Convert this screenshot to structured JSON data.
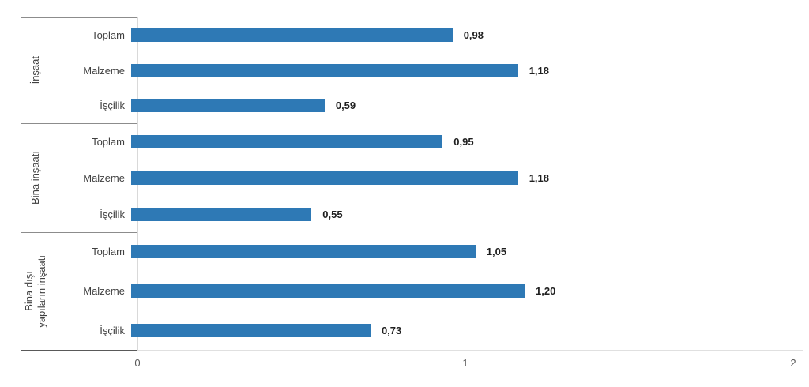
{
  "chart_data": {
    "type": "bar",
    "orientation": "horizontal",
    "bar_color": "#2E79B5",
    "x_axis": {
      "min": 0,
      "max": 2,
      "ticks": [
        "0",
        "1",
        "2"
      ],
      "gridlines": false
    },
    "legend": "none",
    "decimal_separator": ",",
    "groups": [
      {
        "label": "İnşaat",
        "items": [
          {
            "label": "Toplam",
            "value": 0.98,
            "value_label": "0,98"
          },
          {
            "label": "Malzeme",
            "value": 1.18,
            "value_label": "1,18"
          },
          {
            "label": "İşçilik",
            "value": 0.59,
            "value_label": "0,59"
          }
        ]
      },
      {
        "label": "Bina inşaatı",
        "items": [
          {
            "label": "Toplam",
            "value": 0.95,
            "value_label": "0,95"
          },
          {
            "label": "Malzeme",
            "value": 1.18,
            "value_label": "1,18"
          },
          {
            "label": "İşçilik",
            "value": 0.55,
            "value_label": "0,55"
          }
        ]
      },
      {
        "label": "Bina dışı yapıların inşaatı",
        "label_lines": [
          "Bina dışı",
          "yapıların inşaatı"
        ],
        "items": [
          {
            "label": "Toplam",
            "value": 1.05,
            "value_label": "1,05"
          },
          {
            "label": "Malzeme",
            "value": 1.2,
            "value_label": "1,20"
          },
          {
            "label": "İşçilik",
            "value": 0.73,
            "value_label": "0,73"
          }
        ]
      }
    ]
  }
}
